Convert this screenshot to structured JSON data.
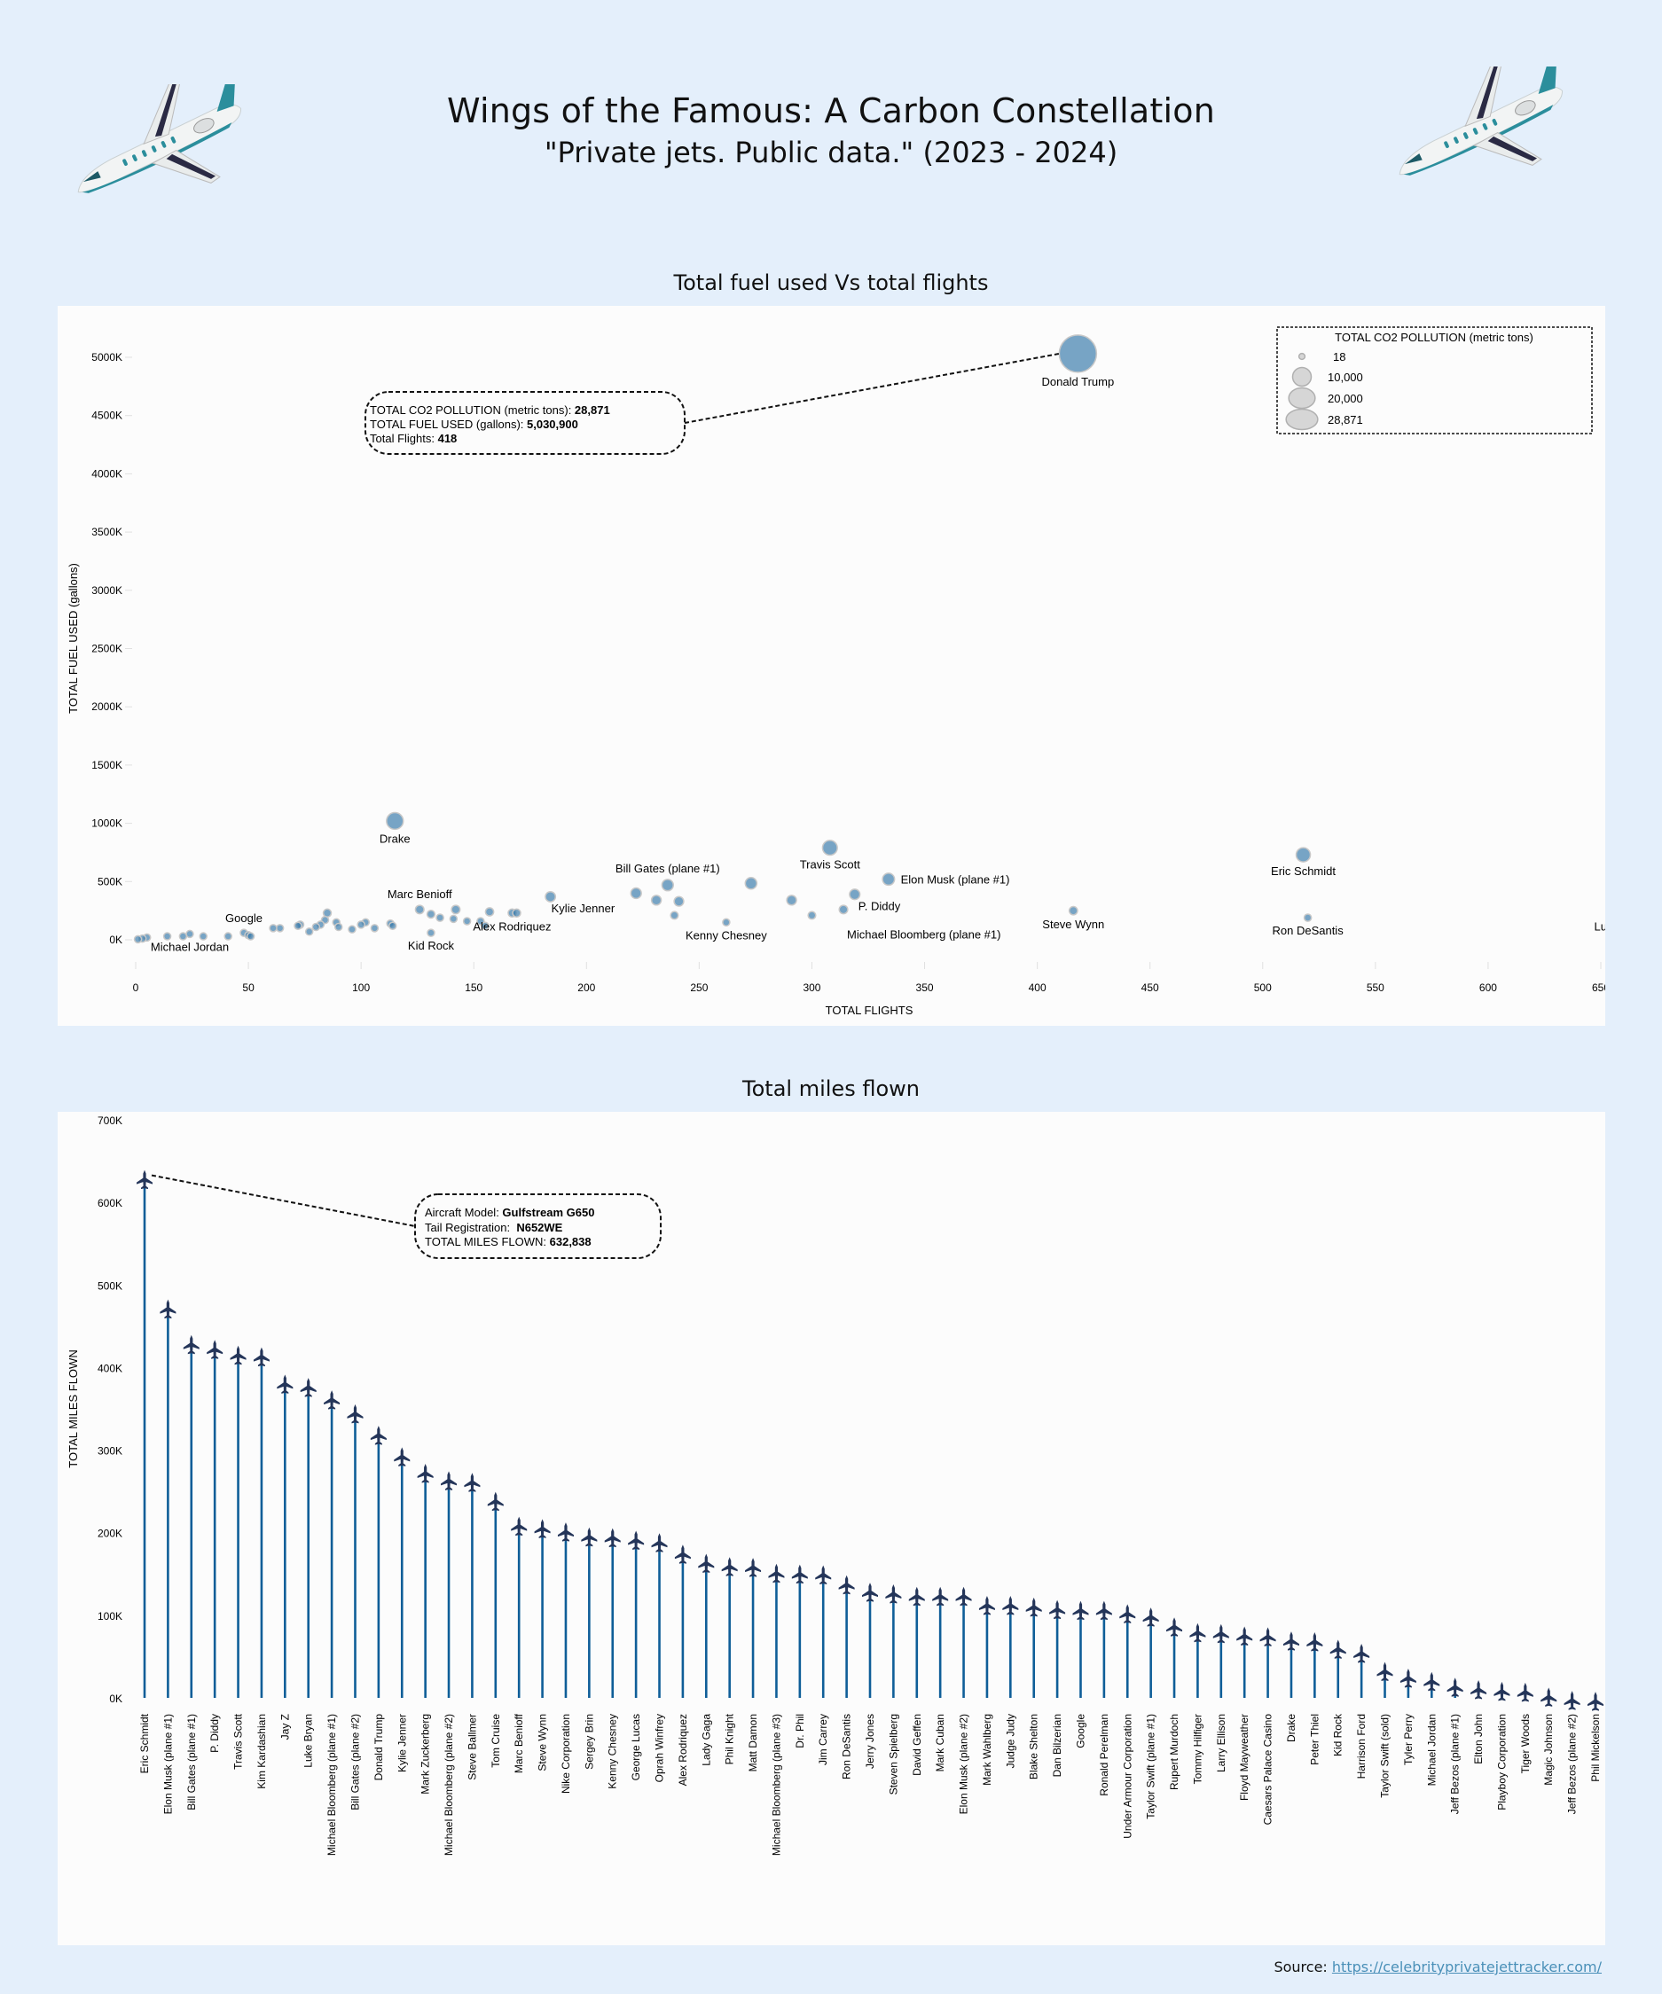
{
  "header": {
    "title": "Wings of the Famous: A Carbon Constellation",
    "subtitle": "\"Private jets. Public data.\" (2023 - 2024)",
    "left_icon": "private-jet-illustration",
    "right_icon": "private-jet-illustration"
  },
  "colors": {
    "page_background": "#e4effb",
    "panel_background": "#fcfcfc",
    "bubble_fill": "#2f75a8",
    "bubble_stroke": "#c8c8c8",
    "stem_color": "#0f5e98",
    "plane_marker": "#243559",
    "link_color": "#4a90b8",
    "legend_bubble": "#d6d6d6"
  },
  "source": {
    "label": "Source:",
    "link_text": "https://celebrityprivatejettracker.com/"
  },
  "chart_data": [
    {
      "type": "scatter",
      "title": "Total fuel used Vs total flights",
      "xlabel": "TOTAL FLIGHTS",
      "ylabel": "TOTAL FUEL USED (gallons)",
      "xlim": [
        0,
        650
      ],
      "ylim": [
        0,
        5000
      ],
      "x_ticks": [
        0,
        50,
        100,
        150,
        200,
        250,
        300,
        350,
        400,
        450,
        500,
        550,
        600,
        650
      ],
      "y_ticks": [
        0,
        500,
        1000,
        1500,
        2000,
        2500,
        3000,
        3500,
        4000,
        4500,
        5000
      ],
      "y_tick_labels": [
        "0K",
        "500K",
        "1000K",
        "1500K",
        "2000K",
        "2500K",
        "3000K",
        "3500K",
        "4000K",
        "4500K",
        "5000K"
      ],
      "y_unit": "thousand gallons",
      "size_encoding": "TOTAL CO2 POLLUTION (metric tons)",
      "grid": false,
      "legend": {
        "title": "TOTAL CO2 POLLUTION (metric tons)",
        "position": "top-right",
        "entries": [
          {
            "label": "18",
            "value": 18
          },
          {
            "label": "10,000",
            "value": 10000
          },
          {
            "label": "20,000",
            "value": 20000
          },
          {
            "label": "28,871",
            "value": 28871
          }
        ]
      },
      "annotation": {
        "target": "Donald Trump",
        "lines": [
          {
            "label": "TOTAL CO2 POLLUTION (metric tons): ",
            "value": "28,871"
          },
          {
            "label": "TOTAL FUEL USED (gallons): ",
            "value": "5,030,900"
          },
          {
            "label": "Total Flights: ",
            "value": "418"
          }
        ]
      },
      "points": [
        {
          "name": "Donald Trump",
          "x": 418,
          "y": 5031,
          "co2": 28871,
          "label": "Donald Trump",
          "label_pos": "below"
        },
        {
          "name": "Drake",
          "x": 115,
          "y": 1020,
          "co2": 5850,
          "label": "Drake",
          "label_pos": "below"
        },
        {
          "name": "Travis Scott",
          "x": 308,
          "y": 790,
          "co2": 4530,
          "label": "Travis Scott",
          "label_pos": "below"
        },
        {
          "name": "Eric Schmidt",
          "x": 518,
          "y": 730,
          "co2": 4190,
          "label": "Eric Schmidt",
          "label_pos": "below"
        },
        {
          "name": "Elon Musk (plane #1)",
          "x": 334,
          "y": 520,
          "co2": 2980,
          "label": "Elon Musk (plane #1)",
          "label_pos": "right"
        },
        {
          "name": "Bill Gates (plane #1)",
          "x": 236,
          "y": 470,
          "co2": 2700,
          "label": "Bill Gates (plane #1)",
          "label_pos": "above"
        },
        {
          "name": "Unlabeled 272",
          "x": 273,
          "y": 485,
          "co2": 2780
        },
        {
          "name": "P. Diddy",
          "x": 319,
          "y": 390,
          "co2": 2240,
          "label": "P. Diddy",
          "label_pos": "below-right"
        },
        {
          "name": "Michael Bloomberg (plane #1)",
          "x": 314,
          "y": 260,
          "co2": 1490,
          "label": "Michael Bloomberg (plane #1)",
          "label_pos": "below-right"
        },
        {
          "name": "Steve Wynn",
          "x": 416,
          "y": 250,
          "co2": 1430,
          "label": "Steve Wynn",
          "label_pos": "below"
        },
        {
          "name": "Ron DeSantis",
          "x": 520,
          "y": 190,
          "co2": 1090,
          "label": "Ron DeSantis",
          "label_pos": "below"
        },
        {
          "name": "Luke Bryan",
          "x": 660,
          "y": 230,
          "co2": 1320,
          "label": "Luke Bryan",
          "label_pos": "below"
        },
        {
          "name": "Kenny Chesney",
          "x": 262,
          "y": 150,
          "co2": 860,
          "label": "Kenny Chesney",
          "label_pos": "below"
        },
        {
          "name": "Kylie Jenner",
          "x": 184,
          "y": 370,
          "co2": 2120,
          "label": "Kylie Jenner",
          "label_pos": "below-right"
        },
        {
          "name": "Alex Rodriquez",
          "x": 167,
          "y": 230,
          "co2": 1320,
          "label": "Alex Rodriquez",
          "label_pos": "below"
        },
        {
          "name": "Marc Benioff",
          "x": 126,
          "y": 260,
          "co2": 1490,
          "label": "Marc Benioff",
          "label_pos": "above"
        },
        {
          "name": "Kid Rock",
          "x": 131,
          "y": 60,
          "co2": 350,
          "label": "Kid Rock",
          "label_pos": "below"
        },
        {
          "name": "Google",
          "x": 48,
          "y": 60,
          "co2": 350,
          "label": "Google",
          "label_pos": "above"
        },
        {
          "name": "Michael Jordan",
          "x": 24,
          "y": 50,
          "co2": 290,
          "label": "Michael Jordan",
          "label_pos": "below"
        },
        {
          "name": "Unlabeled 222",
          "x": 222,
          "y": 400,
          "co2": 2300
        },
        {
          "name": "Unlabeled 231",
          "x": 231,
          "y": 340,
          "co2": 1950
        },
        {
          "name": "Unlabeled 241",
          "x": 241,
          "y": 330,
          "co2": 1890
        },
        {
          "name": "Unlabeled 239",
          "x": 239,
          "y": 210,
          "co2": 1200
        },
        {
          "name": "Unlabeled 291",
          "x": 291,
          "y": 340,
          "co2": 1950
        },
        {
          "name": "Unlabeled 300",
          "x": 300,
          "y": 210,
          "co2": 1200
        },
        {
          "name": "Unlabeled 131",
          "x": 131,
          "y": 220,
          "co2": 1260
        },
        {
          "name": "Unlabeled 135",
          "x": 135,
          "y": 190,
          "co2": 1090
        },
        {
          "name": "Unlabeled 142",
          "x": 142,
          "y": 260,
          "co2": 1490
        },
        {
          "name": "Unlabeled 141",
          "x": 141,
          "y": 180,
          "co2": 1030
        },
        {
          "name": "Unlabeled 147",
          "x": 147,
          "y": 160,
          "co2": 920
        },
        {
          "name": "Unlabeled 153",
          "x": 153,
          "y": 160,
          "co2": 920
        },
        {
          "name": "Unlabeled 155",
          "x": 155,
          "y": 120,
          "co2": 690
        },
        {
          "name": "Unlabeled 157",
          "x": 157,
          "y": 240,
          "co2": 1380
        },
        {
          "name": "Unlabeled 169",
          "x": 169,
          "y": 230,
          "co2": 1320
        },
        {
          "name": "Unlabeled 113",
          "x": 113,
          "y": 140,
          "co2": 800
        },
        {
          "name": "Unlabeled 114",
          "x": 114,
          "y": 120,
          "co2": 690
        },
        {
          "name": "Unlabeled 106",
          "x": 106,
          "y": 100,
          "co2": 570
        },
        {
          "name": "Unlabeled 102",
          "x": 102,
          "y": 150,
          "co2": 860
        },
        {
          "name": "Unlabeled 100",
          "x": 100,
          "y": 130,
          "co2": 750
        },
        {
          "name": "Unlabeled 96",
          "x": 96,
          "y": 90,
          "co2": 520
        },
        {
          "name": "Unlabeled 90",
          "x": 90,
          "y": 110,
          "co2": 630
        },
        {
          "name": "Unlabeled 89",
          "x": 89,
          "y": 150,
          "co2": 860
        },
        {
          "name": "Unlabeled 85",
          "x": 85,
          "y": 230,
          "co2": 1320
        },
        {
          "name": "Unlabeled 84",
          "x": 84,
          "y": 170,
          "co2": 980
        },
        {
          "name": "Unlabeled 82",
          "x": 82,
          "y": 130,
          "co2": 750
        },
        {
          "name": "Unlabeled 80",
          "x": 80,
          "y": 110,
          "co2": 630
        },
        {
          "name": "Unlabeled 77",
          "x": 77,
          "y": 70,
          "co2": 400
        },
        {
          "name": "Unlabeled 73",
          "x": 73,
          "y": 130,
          "co2": 750
        },
        {
          "name": "Unlabeled 72",
          "x": 72,
          "y": 120,
          "co2": 690
        },
        {
          "name": "Unlabeled 64",
          "x": 64,
          "y": 100,
          "co2": 570
        },
        {
          "name": "Unlabeled 61",
          "x": 61,
          "y": 100,
          "co2": 570
        },
        {
          "name": "Unlabeled 51",
          "x": 51,
          "y": 30,
          "co2": 170
        },
        {
          "name": "Unlabeled 50",
          "x": 50,
          "y": 40,
          "co2": 230
        },
        {
          "name": "Unlabeled 41",
          "x": 41,
          "y": 30,
          "co2": 170
        },
        {
          "name": "Unlabeled 30",
          "x": 30,
          "y": 30,
          "co2": 170
        },
        {
          "name": "Unlabeled 21",
          "x": 21,
          "y": 30,
          "co2": 170
        },
        {
          "name": "Unlabeled 14",
          "x": 14,
          "y": 30,
          "co2": 170
        },
        {
          "name": "Unlabeled 5",
          "x": 5,
          "y": 20,
          "co2": 110
        },
        {
          "name": "Unlabeled 3",
          "x": 3,
          "y": 10,
          "co2": 60
        },
        {
          "name": "Unlabeled 1",
          "x": 1,
          "y": 5,
          "co2": 18
        }
      ]
    },
    {
      "type": "bar",
      "subtype": "lollipop",
      "title": "Total miles flown",
      "xlabel": "",
      "ylabel": "TOTAL MILES FLOWN",
      "ylim": [
        0,
        700
      ],
      "y_unit": "thousand miles",
      "y_ticks": [
        0,
        100,
        200,
        300,
        400,
        500,
        600,
        700
      ],
      "y_tick_labels": [
        "0K",
        "100K",
        "200K",
        "300K",
        "400K",
        "500K",
        "600K",
        "700K"
      ],
      "marker": "airplane",
      "grid": false,
      "annotation": {
        "target": "Eric Schmidt",
        "lines": [
          {
            "label": "Aircraft Model: ",
            "value": "Gulfstream G650"
          },
          {
            "label": "Tail Registration:  ",
            "value": "N652WE"
          },
          {
            "label": "TOTAL MILES FLOWN: ",
            "value": "632,838"
          }
        ]
      },
      "categories": [
        "Eric Schmidt",
        "Elon Musk (plane #1)",
        "Bill Gates (plane #1)",
        "P. Diddy",
        "Travis Scott",
        "Kim Kardashian",
        "Jay Z",
        "Luke Bryan",
        "Michael Bloomberg (plane #1)",
        "Bill Gates (plane #2)",
        "Donald Trump",
        "Kylie Jenner",
        "Mark Zuckerberg",
        "Michael Bloomberg (plane #2)",
        "Steve Ballmer",
        "Tom Cruise",
        "Marc Benioff",
        "Steve Wynn",
        "Nike Corporation",
        "Sergey Brin",
        "Kenny Chesney",
        "George Lucas",
        "Oprah Winfrey",
        "Alex Rodriquez",
        "Lady Gaga",
        "Phil Knight",
        "Matt Damon",
        "Michael Bloomberg (plane #3)",
        "Dr. Phil",
        "Jim Carrey",
        "Ron DeSantis",
        "Jerry Jones",
        "Steven Spielberg",
        "David Geffen",
        "Mark Cuban",
        "Elon Musk (plane #2)",
        "Mark Wahlberg",
        "Judge Judy",
        "Blake Shelton",
        "Dan Bilzerian",
        "Google",
        "Ronald Perelman",
        "Under Armour Corporation",
        "Taylor Swift (plane #1)",
        "Rupert Murdoch",
        "Tommy Hilfiger",
        "Larry Ellison",
        "Floyd Mayweather",
        "Caesars Palace Casino",
        "Drake",
        "Peter Thiel",
        "Kid Rock",
        "Harrison Ford",
        "Taylor Swift (sold)",
        "Tyler Perry",
        "Michael Jordan",
        "Jeff Bezos (plane #1)",
        "Elton John",
        "Playboy Corporation",
        "Tiger Woods",
        "Magic Johnson",
        "Jeff Bezos (plane #2)",
        "Phil Mickelson"
      ],
      "values": [
        632.8,
        476,
        433,
        427,
        420,
        418,
        385,
        381,
        366,
        349,
        323,
        297,
        277,
        268,
        266,
        243,
        213,
        210,
        206,
        200,
        199,
        196,
        193,
        179,
        168,
        164,
        163,
        156,
        155,
        154,
        142,
        133,
        131,
        128,
        128,
        128,
        117,
        117,
        115,
        112,
        111,
        111,
        107,
        103,
        91,
        84,
        83,
        80,
        79,
        74,
        73,
        64,
        59,
        37,
        29,
        25,
        18,
        15,
        13,
        12,
        6,
        2,
        1
      ]
    }
  ]
}
